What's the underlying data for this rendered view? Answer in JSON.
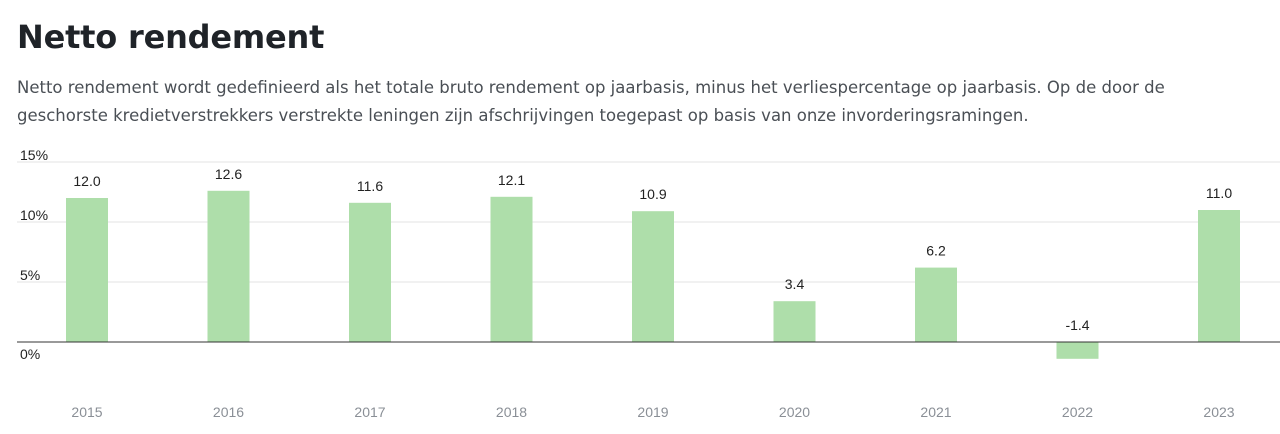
{
  "page": {
    "title": "Netto rendement",
    "description": "Netto rendement wordt gedefinieerd als het totale bruto rendement op jaarbasis, minus het verliespercentage op jaarbasis. Op de door de geschorste kredietverstrekkers verstrekte leningen zijn afschrijvingen toegepast op basis van onze invorderingsramingen."
  },
  "chart_data": {
    "type": "bar",
    "categories": [
      "2015",
      "2016",
      "2017",
      "2018",
      "2019",
      "2020",
      "2021",
      "2022",
      "2023"
    ],
    "values": [
      12.0,
      12.6,
      11.6,
      12.1,
      10.9,
      3.4,
      6.2,
      -1.4,
      11.0
    ],
    "value_labels": [
      "12.0",
      "12.6",
      "11.6",
      "12.1",
      "10.9",
      "3.4",
      "6.2",
      "-1.4",
      "11.0"
    ],
    "y_ticks": [
      0,
      5,
      10,
      15
    ],
    "y_tick_labels": [
      "0%",
      "5%",
      "10%",
      "15%"
    ],
    "ylim": [
      -2.5,
      15
    ],
    "grid": true,
    "legend": "none",
    "colors": {
      "bar": "#aedeaa",
      "grid": "#e3e3e3",
      "zero_line": "#333333"
    }
  }
}
